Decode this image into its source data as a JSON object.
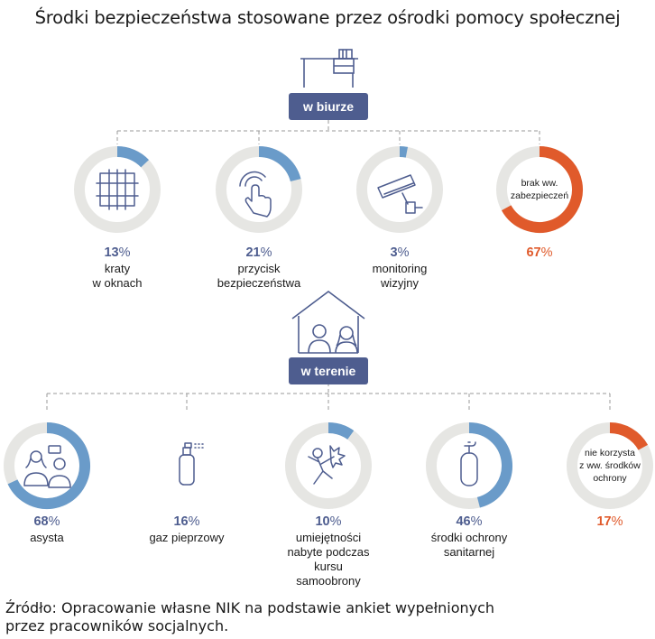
{
  "title": "Środki bezpieczeństwa stosowane przez ośrodki pomocy społecznej",
  "colors": {
    "badge": "#4e5d8f",
    "ring_track": "#e6e6e3",
    "blue": "#6a9bc9",
    "orange": "#e05a2b",
    "dark_blue": "#4e5d8f"
  },
  "office": {
    "badge": "w biurze",
    "items": [
      {
        "value": 13,
        "value_text": "13",
        "unit": "%",
        "label": [
          "kraty",
          "w oknach"
        ],
        "icon": "window-bars-icon",
        "color": "blue"
      },
      {
        "value": 21,
        "value_text": "21",
        "unit": "%",
        "label": [
          "przycisk",
          "bezpieczeństwa"
        ],
        "icon": "push-button-icon",
        "color": "blue"
      },
      {
        "value": 3,
        "value_text": "3",
        "unit": "%",
        "label": [
          "monitoring",
          "wizyjny"
        ],
        "icon": "cctv-camera-icon",
        "color": "blue"
      },
      {
        "value": 67,
        "value_text": "67",
        "unit": "%",
        "label": [],
        "inner_text": [
          "brak ww.",
          "zabezpieczeń"
        ],
        "color": "orange"
      }
    ]
  },
  "field": {
    "badge": "w terenie",
    "items": [
      {
        "value": 68,
        "value_text": "68",
        "unit": "%",
        "label": [
          "asysta"
        ],
        "icon": "two-people-icon",
        "color": "blue"
      },
      {
        "value": 16,
        "value_text": "16",
        "unit": "%",
        "label": [
          "gaz pieprzowy"
        ],
        "icon": "pepper-spray-icon",
        "color": "blue",
        "no_ring": true
      },
      {
        "value": 10,
        "value_text": "10",
        "unit": "%",
        "label": [
          "umiejętności",
          "nabyte podczas",
          "kursu",
          "samoobrony"
        ],
        "icon": "self-defense-icon",
        "color": "blue"
      },
      {
        "value": 46,
        "value_text": "46",
        "unit": "%",
        "label": [
          "środki ochrony",
          "sanitarnej"
        ],
        "icon": "sanitizer-bottle-icon",
        "color": "blue"
      },
      {
        "value": 17,
        "value_text": "17",
        "unit": "%",
        "label": [],
        "inner_text": [
          "nie korzysta",
          "z ww. środków",
          "ochrony"
        ],
        "color": "orange"
      }
    ]
  },
  "source": [
    "Źródło: Opracowanie własne NIK na podstawie ankiet wypełnionych",
    "przez pracowników socjalnych."
  ]
}
